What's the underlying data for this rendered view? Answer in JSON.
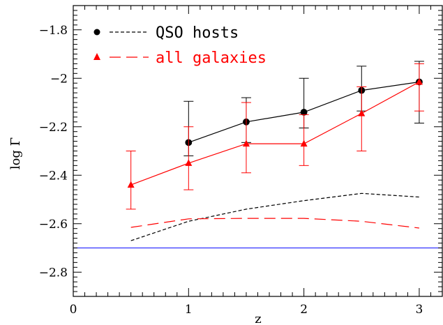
{
  "chart_data": {
    "type": "line",
    "title": "",
    "xlabel": "z",
    "ylabel": "log Γ",
    "xlim": [
      0,
      3.2
    ],
    "ylim": [
      -2.9,
      -1.7
    ],
    "xticks": [
      0,
      1,
      2,
      3
    ],
    "xtick_labels": [
      "0",
      "1",
      "2",
      "3"
    ],
    "yticks": [
      -1.8,
      -2,
      -2.2,
      -2.4,
      -2.6,
      -2.8
    ],
    "ytick_labels": [
      "−1.8",
      "−2",
      "−2.2",
      "−2.4",
      "−2.6",
      "−2.8"
    ],
    "grid": false,
    "legend_position": "top-left",
    "series": [
      {
        "name": "QSO hosts",
        "color": "#000000",
        "marker": "circle",
        "line_style": "solid",
        "x": [
          1,
          1.5,
          2,
          2.5,
          3
        ],
        "y": [
          -2.265,
          -2.18,
          -2.14,
          -2.05,
          -2.015
        ],
        "yerr_low": [
          -2.32,
          -2.265,
          -2.205,
          -2.135,
          -2.185
        ],
        "yerr_high": [
          -2.095,
          -2.08,
          -2.0,
          -1.95,
          -1.93
        ]
      },
      {
        "name": "all galaxies",
        "color": "#ff0000",
        "marker": "triangle",
        "line_style": "solid",
        "x": [
          0.5,
          1,
          1.5,
          2,
          2.5,
          3
        ],
        "y": [
          -2.44,
          -2.35,
          -2.27,
          -2.27,
          -2.145,
          -2.015
        ],
        "yerr_low": [
          -2.54,
          -2.46,
          -2.39,
          -2.36,
          -2.3,
          -2.135
        ],
        "yerr_high": [
          -2.3,
          -2.2,
          -2.1,
          -2.15,
          -2.035,
          -1.94
        ]
      },
      {
        "name": "QSO hosts",
        "color": "#000000",
        "line_style": "dotted-dash",
        "x": [
          0.5,
          0.75,
          1,
          1.5,
          2,
          2.5,
          3
        ],
        "y": [
          -2.67,
          -2.63,
          -2.59,
          -2.54,
          -2.505,
          -2.475,
          -2.49
        ]
      },
      {
        "name": "all galaxies",
        "color": "#ff0000",
        "line_style": "long-dash",
        "x": [
          0.5,
          1,
          1.5,
          2,
          2.5,
          3
        ],
        "y": [
          -2.615,
          -2.58,
          -2.578,
          -2.578,
          -2.59,
          -2.618
        ]
      },
      {
        "name": "",
        "color": "#3333ff",
        "line_style": "solid",
        "x": [
          0,
          3.2
        ],
        "y": [
          -2.7,
          -2.7
        ]
      }
    ],
    "legend": [
      {
        "label": "QSO hosts",
        "color": "#000000",
        "marker": "circle",
        "line_style": "dashed"
      },
      {
        "label": "all galaxies",
        "color": "#ff0000",
        "marker": "triangle",
        "line_style": "long-dash"
      }
    ]
  }
}
